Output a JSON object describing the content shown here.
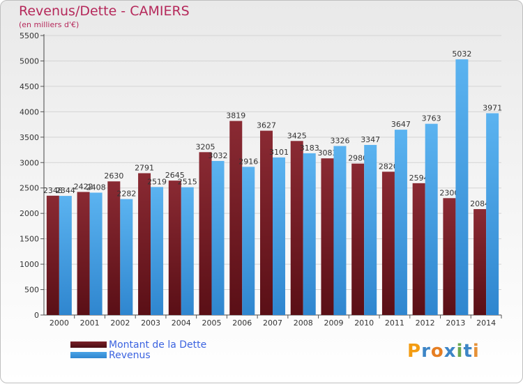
{
  "colors": {
    "dette": "#7a1f27",
    "revenus": "#4aa3e6",
    "title": "#b5285a",
    "legend_text": "#3b63e0"
  },
  "chart_data": {
    "type": "bar",
    "title": "Revenus/Dette - CAMIERS",
    "subtitle": "(en milliers d'€)",
    "xlabel": "",
    "ylabel": "",
    "ylim": [
      0,
      5500
    ],
    "yticks": [
      0,
      500,
      1000,
      1500,
      2000,
      2500,
      3000,
      3500,
      4000,
      4500,
      5000,
      5500
    ],
    "grid": true,
    "categories": [
      "2000",
      "2001",
      "2002",
      "2003",
      "2004",
      "2005",
      "2006",
      "2007",
      "2008",
      "2009",
      "2010",
      "2011",
      "2012",
      "2013",
      "2014"
    ],
    "series": [
      {
        "name": "Montant de la Dette",
        "values": [
          2348,
          2422,
          2630,
          2791,
          2645,
          3205,
          3819,
          3627,
          3425,
          3083,
          2980,
          2820,
          2594,
          2300,
          2084
        ],
        "labels": [
          "2348",
          "2422",
          "2630",
          "2791",
          "2645",
          "3205",
          "3819",
          "3627",
          "3425",
          "3083",
          "2980",
          "2820",
          "2594",
          "2300",
          "2084"
        ]
      },
      {
        "name": "Revenus",
        "values": [
          2344,
          2408,
          2282,
          2519,
          2515,
          3032,
          2916,
          3101,
          3183,
          3326,
          3347,
          3647,
          3763,
          5032,
          3971
        ],
        "labels": [
          "2344",
          "2408",
          "2282",
          "2519",
          "2515",
          "3032",
          "2916",
          "3101",
          "3183",
          "3326",
          "3347",
          "3647",
          "3763",
          "5032",
          "3971"
        ]
      }
    ]
  },
  "legend": {
    "items": [
      "Montant de la Dette",
      "Revenus"
    ]
  },
  "logo": {
    "text": "Proxiti",
    "letters": [
      "P",
      "r",
      "o",
      "x",
      "i",
      "t",
      "i"
    ],
    "letter_colors": [
      "#f39c12",
      "#3d85c6",
      "#e67e22",
      "#3d85c6",
      "#6aa84f",
      "#3d85c6",
      "#e69138"
    ]
  }
}
